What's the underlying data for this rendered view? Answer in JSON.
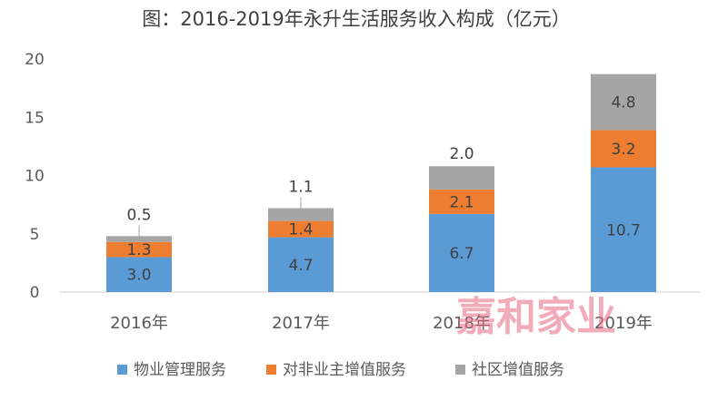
{
  "title": "图：2016-2019年永升生活服务收入构成（亿元）",
  "watermark": "嘉和家业",
  "chart_data": {
    "type": "bar",
    "stacked": true,
    "categories": [
      "2016年",
      "2017年",
      "2018年",
      "2019年"
    ],
    "ylim": [
      0,
      20
    ],
    "yticks": [
      0,
      5,
      10,
      15,
      20
    ],
    "grid": false,
    "legend_position": "bottom",
    "series": [
      {
        "name": "物业管理服务",
        "color": "#5b9bd5",
        "values": [
          3.0,
          4.7,
          6.7,
          10.7
        ]
      },
      {
        "name": "对非业主增值服务",
        "color": "#ed7d31",
        "values": [
          1.3,
          1.4,
          2.1,
          3.2
        ]
      },
      {
        "name": "社区增值服务",
        "color": "#a5a5a5",
        "values": [
          0.5,
          1.1,
          2.0,
          4.8
        ]
      }
    ]
  }
}
